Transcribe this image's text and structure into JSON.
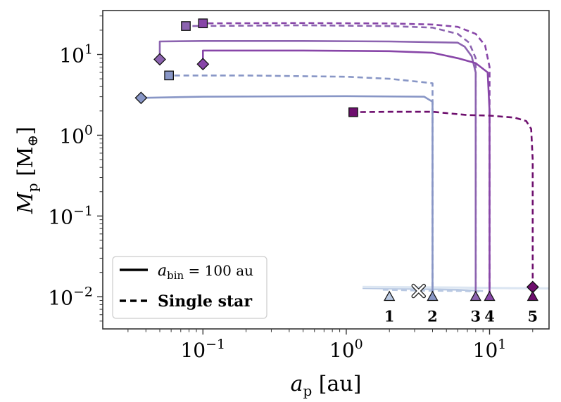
{
  "chart_data": {
    "type": "line",
    "xscale": "log",
    "yscale": "log",
    "xlim": [
      0.02,
      26
    ],
    "ylim": [
      0.004,
      35
    ],
    "x_ticks": [
      0.1,
      1,
      10
    ],
    "x_tick_labels": [
      {
        "base": "10",
        "exp": "−1"
      },
      {
        "base": "10",
        "exp": "0"
      },
      {
        "base": "10",
        "exp": "1"
      }
    ],
    "y_ticks": [
      0.01,
      0.1,
      1,
      10
    ],
    "y_tick_labels": [
      {
        "base": "10",
        "exp": "−2"
      },
      {
        "base": "10",
        "exp": "−1"
      },
      {
        "base": "10",
        "exp": "0"
      },
      {
        "base": "10",
        "exp": "1"
      }
    ],
    "xlabel": {
      "main": "a",
      "sub": "p",
      "unit": " [au]"
    },
    "ylabel": {
      "main": "M",
      "sub": "p",
      "unit_pre": " [M",
      "unit_sub": "⊕",
      "unit_post": "]"
    },
    "legend": {
      "placement": "lower-left",
      "entries": [
        {
          "style": "solid",
          "label_main": "a",
          "label_sub": "bin",
          "label_rest": " = 100 au"
        },
        {
          "style": "dashed",
          "label": "Single star"
        }
      ]
    },
    "colors": {
      "p1": "#b8c8e2",
      "p2": "#8896c6",
      "p3": "#8c63b0",
      "p4": "#8846a8",
      "p5": "#6e0f6e",
      "disk_band": "#dce6f2"
    },
    "start_markers": [
      {
        "id": "1",
        "label": "1",
        "x": 2.0,
        "y": 0.01,
        "color": "p1"
      },
      {
        "id": "2",
        "label": "2",
        "x": 4.0,
        "y": 0.01,
        "color": "p2"
      },
      {
        "id": "3",
        "label": "3",
        "x": 8.0,
        "y": 0.01,
        "color": "p3"
      },
      {
        "id": "4",
        "label": "4",
        "x": 10.0,
        "y": 0.01,
        "color": "p4"
      },
      {
        "id": "5",
        "label": "5",
        "x": 20.0,
        "y": 0.01,
        "color": "p5"
      }
    ],
    "x_marker": {
      "x": 3.2,
      "y": 0.0118
    },
    "series": [
      {
        "name": "planet 1 binary",
        "planet": "1",
        "style": "solid",
        "color": "p1",
        "points": [
          [
            1.3,
            0.0128
          ],
          [
            3.0,
            0.0125
          ],
          [
            6.0,
            0.0122
          ],
          [
            9.0,
            0.0118
          ]
        ],
        "end": null
      },
      {
        "name": "planet 1 single",
        "planet": "1",
        "style": "dashed",
        "color": "p1",
        "points": [
          [
            1.8,
            0.0122
          ],
          [
            3.5,
            0.0119
          ],
          [
            6.5,
            0.0118
          ],
          [
            8.5,
            0.0116
          ]
        ],
        "end": null
      },
      {
        "name": "planet 5 single (background)",
        "planet": "5",
        "style": "solid",
        "color": "disk_band",
        "points": [
          [
            1.3,
            0.0132
          ],
          [
            6.0,
            0.013
          ],
          [
            14.0,
            0.0128
          ],
          [
            26.0,
            0.0127
          ]
        ],
        "end": null
      },
      {
        "name": "planet 2 binary",
        "planet": "2",
        "style": "solid",
        "color": "p2",
        "points": [
          [
            4.0,
            0.01
          ],
          [
            4.0,
            2.6
          ],
          [
            3.5,
            3.0
          ],
          [
            1.0,
            3.05
          ],
          [
            0.1,
            3.0
          ],
          [
            0.06,
            2.95
          ],
          [
            0.037,
            2.9
          ]
        ],
        "end": {
          "shape": "diamond",
          "x": 0.037,
          "y": 2.9
        }
      },
      {
        "name": "planet 2 single",
        "planet": "2",
        "style": "dashed",
        "color": "p2",
        "points": [
          [
            4.0,
            0.01
          ],
          [
            4.0,
            4.4
          ],
          [
            3.2,
            4.6
          ],
          [
            2.0,
            5.0
          ],
          [
            1.0,
            5.3
          ],
          [
            0.2,
            5.5
          ],
          [
            0.058,
            5.5
          ]
        ],
        "end": {
          "shape": "square",
          "x": 0.058,
          "y": 5.5
        }
      },
      {
        "name": "planet 3 binary",
        "planet": "3",
        "style": "solid",
        "color": "p3",
        "points": [
          [
            8.0,
            0.01
          ],
          [
            8.0,
            6.0
          ],
          [
            7.5,
            9.5
          ],
          [
            6.7,
            12.5
          ],
          [
            6.0,
            14.0
          ],
          [
            2.0,
            14.5
          ],
          [
            0.5,
            14.7
          ],
          [
            0.1,
            14.7
          ],
          [
            0.05,
            14.5
          ],
          [
            0.05,
            8.7
          ]
        ],
        "end": {
          "shape": "diamond",
          "x": 0.05,
          "y": 8.7
        }
      },
      {
        "name": "planet 3 single",
        "planet": "3",
        "style": "dashed",
        "color": "p3",
        "points": [
          [
            8.0,
            0.01
          ],
          [
            8.0,
            9.0
          ],
          [
            7.2,
            14.0
          ],
          [
            6.0,
            18.0
          ],
          [
            4.0,
            21.5
          ],
          [
            2.0,
            22.5
          ],
          [
            0.5,
            23.0
          ],
          [
            0.076,
            22.5
          ]
        ],
        "end": {
          "shape": "square",
          "x": 0.076,
          "y": 22.5
        }
      },
      {
        "name": "planet 4 binary",
        "planet": "4",
        "style": "solid",
        "color": "p4",
        "points": [
          [
            10.0,
            0.01
          ],
          [
            10.0,
            2.0
          ],
          [
            9.7,
            6.0
          ],
          [
            8.0,
            7.8
          ],
          [
            6.0,
            9.0
          ],
          [
            4.0,
            10.5
          ],
          [
            2.0,
            11.0
          ],
          [
            0.5,
            11.2
          ],
          [
            0.1,
            11.2
          ],
          [
            0.1,
            7.6
          ]
        ],
        "end": {
          "shape": "diamond",
          "x": 0.1,
          "y": 7.6
        }
      },
      {
        "name": "planet 4 single",
        "planet": "4",
        "style": "dashed",
        "color": "p4",
        "points": [
          [
            10.0,
            0.01
          ],
          [
            10.0,
            7.0
          ],
          [
            9.3,
            13.0
          ],
          [
            8.0,
            18.0
          ],
          [
            6.0,
            22.0
          ],
          [
            4.0,
            23.5
          ],
          [
            2.0,
            24.2
          ],
          [
            0.5,
            24.5
          ],
          [
            0.1,
            24.3
          ]
        ],
        "end": {
          "shape": "square",
          "x": 0.1,
          "y": 24.3
        }
      },
      {
        "name": "planet 5 binary",
        "planet": "5",
        "style": "solid",
        "color": "p5",
        "points": [
          [
            20.0,
            0.0132
          ]
        ],
        "end": {
          "shape": "diamond",
          "x": 20.0,
          "y": 0.0132
        }
      },
      {
        "name": "planet 5 single",
        "planet": "5",
        "style": "dashed",
        "color": "p5",
        "points": [
          [
            20.0,
            0.01
          ],
          [
            20.0,
            0.5
          ],
          [
            19.5,
            1.2
          ],
          [
            18.0,
            1.5
          ],
          [
            15.0,
            1.65
          ],
          [
            10.0,
            1.75
          ],
          [
            7.0,
            1.78
          ],
          [
            4.0,
            1.95
          ],
          [
            2.0,
            1.95
          ],
          [
            1.12,
            1.93
          ]
        ],
        "end": {
          "shape": "square",
          "x": 1.12,
          "y": 1.93
        }
      }
    ]
  }
}
